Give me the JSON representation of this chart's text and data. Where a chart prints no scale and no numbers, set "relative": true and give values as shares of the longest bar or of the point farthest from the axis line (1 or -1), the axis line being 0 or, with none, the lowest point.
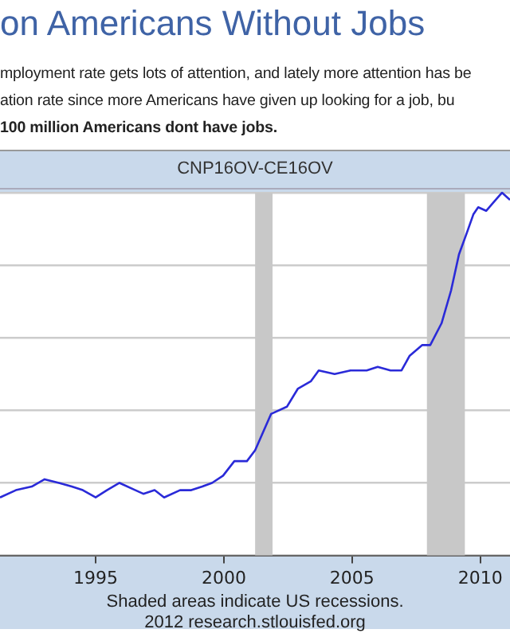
{
  "chart_data": {
    "type": "line",
    "title": "on Americans Without Jobs",
    "subtitle": "mployment rate gets lots of attention, and lately more attention has be\nation rate since more Americans have given up looking for a job, bu\n100 million Americans dont have jobs.",
    "annotations": [
      "CNP16OV-CE16OV",
      "Shaded areas indicate US recessions.",
      "2012 research.stlouisfed.org"
    ],
    "relative": true,
    "grid": "y",
    "legend": false,
    "marker": "none",
    "line_style": "solid",
    "xlim": [
      1991.27,
      2011.16
    ],
    "xticks": [
      1995,
      2000,
      2005,
      2010
    ],
    "bands": [
      {
        "axis": "x",
        "from": 2001.22,
        "to": 2001.9,
        "color": "#c8c8c8"
      },
      {
        "axis": "x",
        "from": 2007.92,
        "to": 2009.4,
        "color": "#c8c8c8"
      }
    ],
    "series": [
      {
        "color": "#2a2ad8",
        "x": [
          1991.27,
          1991.89,
          1992.51,
          1993.01,
          1993.57,
          1994.07,
          1994.5,
          1995.0,
          1995.44,
          1995.93,
          1996.55,
          1996.86,
          1997.3,
          1997.67,
          1998.29,
          1998.73,
          1999.16,
          1999.54,
          1999.97,
          2000.41,
          2000.9,
          2001.22,
          2001.84,
          2002.46,
          2002.89,
          2003.39,
          2003.7,
          2004.32,
          2004.94,
          2005.57,
          2006.0,
          2006.5,
          2006.93,
          2007.24,
          2007.74,
          2008.05,
          2008.49,
          2008.86,
          2009.17,
          2009.48,
          2009.73,
          2009.92,
          2010.23,
          2010.72,
          2010.85,
          2011.16
        ],
        "values": [
          0.16,
          0.18,
          0.19,
          0.21,
          0.2,
          0.19,
          0.18,
          0.16,
          0.18,
          0.2,
          0.18,
          0.17,
          0.18,
          0.16,
          0.18,
          0.18,
          0.19,
          0.2,
          0.22,
          0.26,
          0.26,
          0.29,
          0.39,
          0.41,
          0.46,
          0.48,
          0.51,
          0.5,
          0.51,
          0.51,
          0.52,
          0.51,
          0.51,
          0.55,
          0.58,
          0.58,
          0.64,
          0.73,
          0.83,
          0.89,
          0.94,
          0.96,
          0.95,
          0.99,
          1,
          0.98
        ]
      }
    ]
  }
}
